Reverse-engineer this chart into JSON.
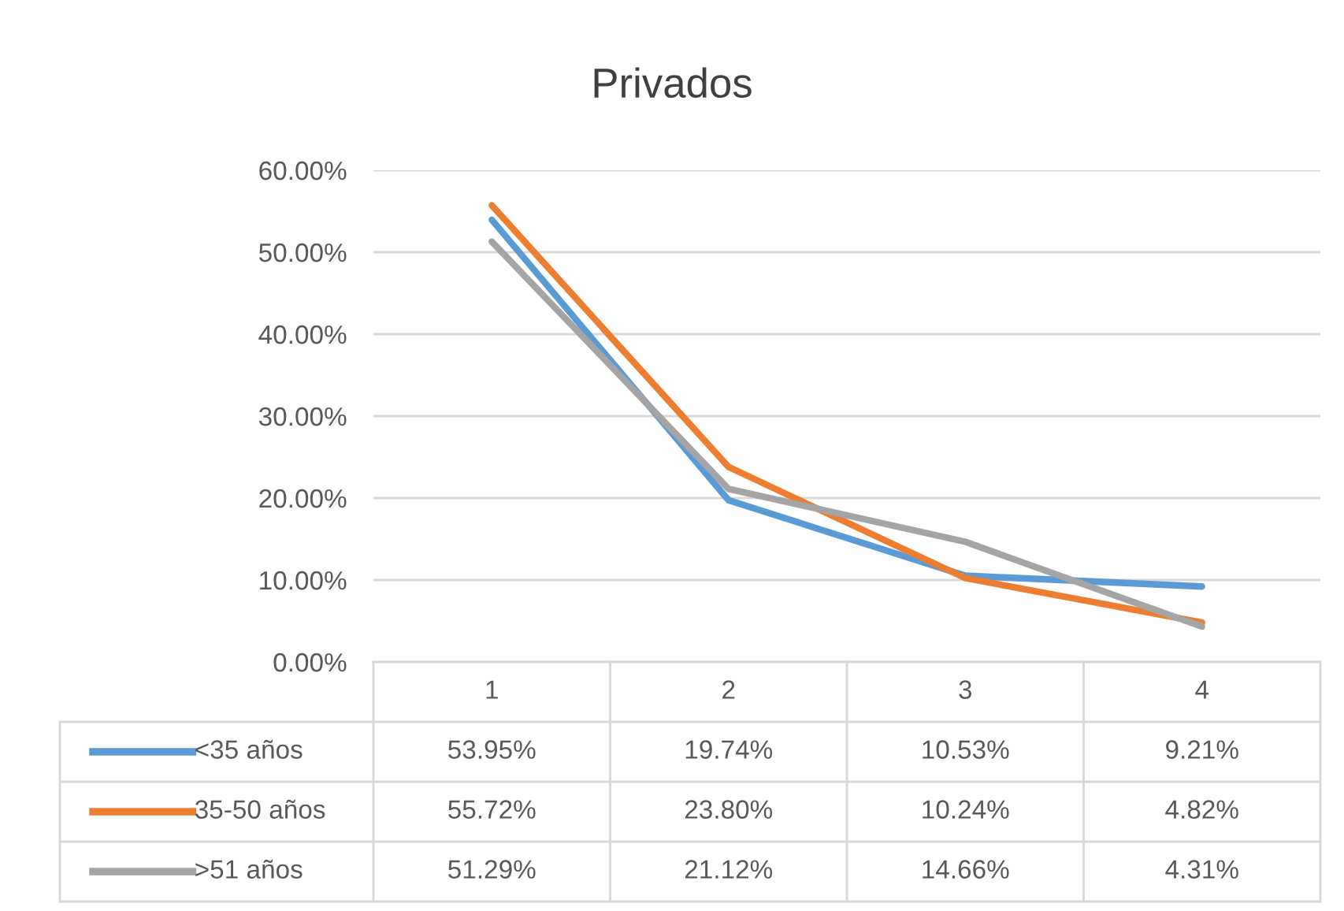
{
  "chart_data": {
    "type": "line",
    "title": "Privados",
    "categories": [
      "1",
      "2",
      "3",
      "4"
    ],
    "series": [
      {
        "name": "<35 años",
        "color": "#5b9bd5",
        "values": [
          53.95,
          19.74,
          10.53,
          9.21
        ],
        "value_labels": [
          "53.95%",
          "19.74%",
          "10.53%",
          "9.21%"
        ]
      },
      {
        "name": "35-50 años",
        "color": "#ed7d31",
        "values": [
          55.72,
          23.8,
          10.24,
          4.82
        ],
        "value_labels": [
          "55.72%",
          "23.80%",
          "10.24%",
          "4.82%"
        ]
      },
      {
        "name": ">51 años",
        "color": "#a5a5a5",
        "values": [
          51.29,
          21.12,
          14.66,
          4.31
        ],
        "value_labels": [
          "51.29%",
          "21.12%",
          "14.66%",
          "4.31%"
        ]
      }
    ],
    "ylim": [
      0,
      60
    ],
    "yticks": [
      {
        "value": 0,
        "label": "0.00%"
      },
      {
        "value": 10,
        "label": "10.00%"
      },
      {
        "value": 20,
        "label": "20.00%"
      },
      {
        "value": 30,
        "label": "30.00%"
      },
      {
        "value": 40,
        "label": "40.00%"
      },
      {
        "value": 50,
        "label": "50.00%"
      },
      {
        "value": 60,
        "label": "60.00%"
      }
    ],
    "grid": "y",
    "legend": "bottom",
    "marker": "none",
    "line_style": "solid"
  }
}
